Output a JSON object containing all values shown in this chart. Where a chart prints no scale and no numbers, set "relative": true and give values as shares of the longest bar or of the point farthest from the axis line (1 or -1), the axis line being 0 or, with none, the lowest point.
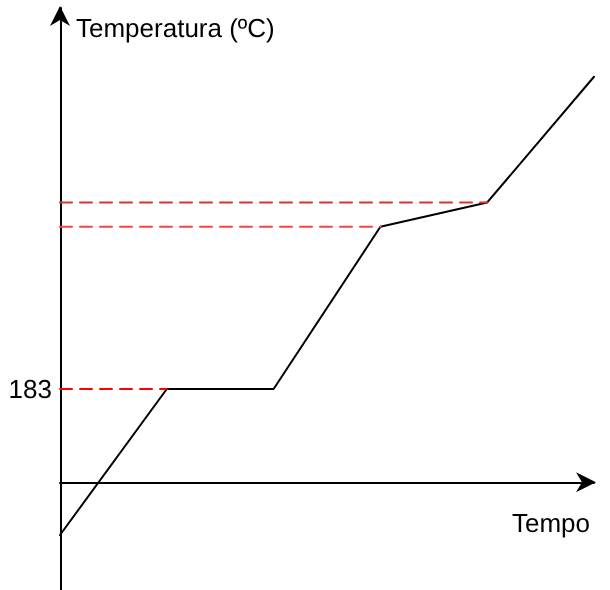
{
  "chart_data": {
    "type": "line",
    "relative": true,
    "xlabel": "Tempo",
    "ylabel": "Temperatura (ºC)",
    "tick_labels": false,
    "grid": false,
    "marker": "none",
    "categories": [
      null,
      null,
      null,
      null,
      null,
      null
    ],
    "series": [
      {
        "color": "#000000",
        "line_style": "solid",
        "values": [
          -0.13,
          0.23,
          0.23,
          0.63,
          0.69,
          1
        ]
      },
      {
        "color": "#ff0000",
        "line_style": "dashed",
        "values": [
          0.23,
          0.23,
          null,
          null,
          null,
          null
        ]
      },
      {
        "color": "#ff4040",
        "line_style": "dashed",
        "values": [
          0.63,
          0.63,
          0.63,
          0.63,
          null,
          null
        ]
      },
      {
        "color": "#e03030",
        "line_style": "dashed",
        "values": [
          0.69,
          0.69,
          0.69,
          0.69,
          0.69,
          null
        ]
      }
    ],
    "annotations": [
      "183"
    ]
  }
}
